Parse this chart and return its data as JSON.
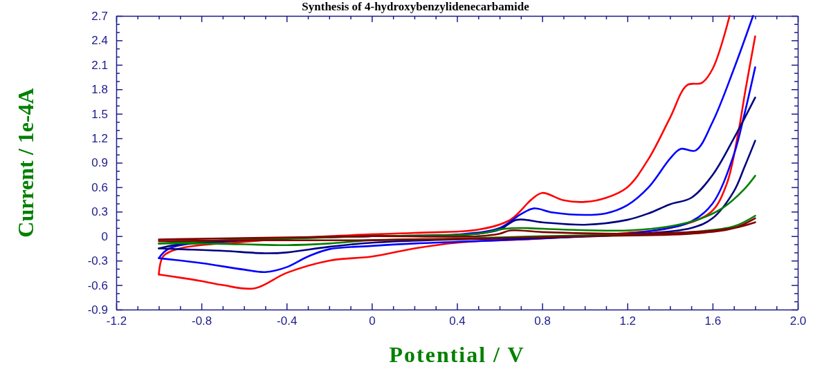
{
  "chart_data": {
    "type": "line",
    "title": "Synthesis of 4-hydroxybenzylidenecarbamide",
    "xlabel": "Potential / V",
    "ylabel": "Current / 1e-4A",
    "xlim": [
      -1.2,
      2.0
    ],
    "xticks": [
      {
        "value": -1.2,
        "label": "-1.2"
      },
      {
        "value": -1.1,
        "label": null
      },
      {
        "value": -1.0,
        "label": null
      },
      {
        "value": -0.9,
        "label": null
      },
      {
        "value": -0.8,
        "label": "-0.8"
      },
      {
        "value": -0.7,
        "label": null
      },
      {
        "value": -0.6,
        "label": null
      },
      {
        "value": -0.5,
        "label": null
      },
      {
        "value": -0.4,
        "label": "-0.4"
      },
      {
        "value": -0.3,
        "label": null
      },
      {
        "value": -0.2,
        "label": null
      },
      {
        "value": -0.1,
        "label": null
      },
      {
        "value": 0,
        "label": "0"
      },
      {
        "value": 0.1,
        "label": null
      },
      {
        "value": 0.2,
        "label": null
      },
      {
        "value": 0.3,
        "label": null
      },
      {
        "value": 0.4,
        "label": "0.4"
      },
      {
        "value": 0.5,
        "label": null
      },
      {
        "value": 0.6,
        "label": null
      },
      {
        "value": 0.7,
        "label": null
      },
      {
        "value": 0.8,
        "label": "0.8"
      },
      {
        "value": 0.9,
        "label": null
      },
      {
        "value": 1.0,
        "label": null
      },
      {
        "value": 1.1,
        "label": null
      },
      {
        "value": 1.2,
        "label": "1.2"
      },
      {
        "value": 1.3,
        "label": null
      },
      {
        "value": 1.4,
        "label": null
      },
      {
        "value": 1.5,
        "label": null
      },
      {
        "value": 1.6,
        "label": "1.6"
      },
      {
        "value": 1.7,
        "label": null
      },
      {
        "value": 1.8,
        "label": null
      },
      {
        "value": 1.9,
        "label": null
      },
      {
        "value": 2.0,
        "label": "2.0"
      }
    ],
    "ylim": [
      -0.9,
      2.7
    ],
    "yticks": [
      {
        "value": -0.9,
        "label": "-0.9"
      },
      {
        "value": -0.8,
        "label": null
      },
      {
        "value": -0.7,
        "label": null
      },
      {
        "value": -0.6,
        "label": "-0.6"
      },
      {
        "value": -0.5,
        "label": null
      },
      {
        "value": -0.4,
        "label": null
      },
      {
        "value": -0.3,
        "label": "-0.3"
      },
      {
        "value": -0.2,
        "label": null
      },
      {
        "value": -0.1,
        "label": null
      },
      {
        "value": 0,
        "label": "0"
      },
      {
        "value": 0.1,
        "label": null
      },
      {
        "value": 0.2,
        "label": null
      },
      {
        "value": 0.3,
        "label": "0.3"
      },
      {
        "value": 0.4,
        "label": null
      },
      {
        "value": 0.5,
        "label": null
      },
      {
        "value": 0.6,
        "label": "0.6"
      },
      {
        "value": 0.7,
        "label": null
      },
      {
        "value": 0.8,
        "label": null
      },
      {
        "value": 0.9,
        "label": "0.9"
      },
      {
        "value": 1.0,
        "label": null
      },
      {
        "value": 1.1,
        "label": null
      },
      {
        "value": 1.2,
        "label": "1.2"
      },
      {
        "value": 1.3,
        "label": null
      },
      {
        "value": 1.4,
        "label": null
      },
      {
        "value": 1.5,
        "label": "1.5"
      },
      {
        "value": 1.6,
        "label": null
      },
      {
        "value": 1.7,
        "label": null
      },
      {
        "value": 1.8,
        "label": "1.8"
      },
      {
        "value": 1.9,
        "label": null
      },
      {
        "value": 2.0,
        "label": null
      },
      {
        "value": 2.1,
        "label": "2.1"
      },
      {
        "value": 2.2,
        "label": null
      },
      {
        "value": 2.3,
        "label": null
      },
      {
        "value": 2.4,
        "label": "2.4"
      },
      {
        "value": 2.5,
        "label": null
      },
      {
        "value": 2.6,
        "label": null
      },
      {
        "value": 2.7,
        "label": "2.7"
      }
    ],
    "grid": false,
    "marker": "none",
    "line_style": "solid",
    "series": [
      {
        "color": "#ff0000",
        "x": [
          -1.0,
          -0.98,
          -0.9,
          -0.6,
          -0.2,
          0.2,
          0.5,
          0.65,
          0.75,
          0.8,
          0.9,
          1.0,
          1.1,
          1.2,
          1.3,
          1.4,
          1.48,
          1.55,
          1.6,
          1.68
        ],
        "values": [
          -0.47,
          -0.25,
          -0.15,
          -0.07,
          0.0,
          0.04,
          0.08,
          0.2,
          0.45,
          0.53,
          0.44,
          0.42,
          0.47,
          0.6,
          0.95,
          1.45,
          1.85,
          1.88,
          2.05,
          2.7
        ]
      },
      {
        "color": "#ff0000",
        "x": [
          1.8,
          1.753,
          1.72,
          1.665,
          1.59,
          1.4,
          1.2,
          0.8,
          0.4,
          0.2,
          0,
          -0.2,
          -0.4,
          -0.55,
          -0.7,
          -0.8,
          -1.0
        ],
        "values": [
          2.45,
          1.77,
          1.26,
          0.63,
          0.29,
          0.1,
          0.04,
          -0.03,
          -0.08,
          -0.15,
          -0.25,
          -0.3,
          -0.45,
          -0.64,
          -0.6,
          -0.55,
          -0.47
        ]
      },
      {
        "color": "#0000ff",
        "x": [
          -1.0,
          -0.95,
          -0.6,
          0,
          0.4,
          0.6,
          0.7,
          0.76,
          0.85,
          1.0,
          1.1,
          1.2,
          1.3,
          1.4,
          1.45,
          1.52,
          1.6,
          1.7,
          1.79
        ],
        "values": [
          -0.27,
          -0.15,
          -0.05,
          0.0,
          0.02,
          0.1,
          0.27,
          0.34,
          0.29,
          0.26,
          0.28,
          0.38,
          0.6,
          0.95,
          1.07,
          1.05,
          1.4,
          2.05,
          2.7
        ]
      },
      {
        "color": "#0000ff",
        "x": [
          1.8,
          1.75,
          1.7,
          1.6,
          1.5,
          1.3,
          1.0,
          0.6,
          0.4,
          0.2,
          0,
          -0.2,
          -0.3,
          -0.4,
          -0.5,
          -0.6,
          -0.8,
          -1.0
        ],
        "values": [
          2.07,
          1.5,
          1.0,
          0.4,
          0.18,
          0.06,
          0.0,
          -0.05,
          -0.07,
          -0.09,
          -0.12,
          -0.16,
          -0.25,
          -0.38,
          -0.44,
          -0.41,
          -0.33,
          -0.27
        ]
      },
      {
        "color": "#000080",
        "x": [
          -1.0,
          -0.9,
          -0.5,
          0,
          0.5,
          0.6,
          0.68,
          0.8,
          1.0,
          1.2,
          1.3,
          1.4,
          1.5,
          1.6,
          1.7,
          1.8
        ],
        "values": [
          -0.15,
          -0.1,
          -0.04,
          0.0,
          0.03,
          0.08,
          0.2,
          0.17,
          0.14,
          0.2,
          0.28,
          0.39,
          0.47,
          0.75,
          1.2,
          1.7
        ]
      },
      {
        "color": "#000080",
        "x": [
          1.8,
          1.75,
          1.7,
          1.6,
          1.5,
          1.2,
          0.8,
          0.4,
          0,
          -0.2,
          -0.4,
          -0.5,
          -0.7,
          -0.9,
          -1.0
        ],
        "values": [
          1.17,
          0.85,
          0.55,
          0.22,
          0.1,
          0.02,
          -0.02,
          -0.04,
          -0.08,
          -0.13,
          -0.2,
          -0.21,
          -0.18,
          -0.16,
          -0.15
        ]
      },
      {
        "color": "#008000",
        "x": [
          -1.0,
          -0.8,
          -0.4,
          0,
          0.5,
          0.62,
          0.7,
          0.9,
          1.2,
          1.4,
          1.55,
          1.65,
          1.75,
          1.8
        ],
        "values": [
          -0.09,
          -0.06,
          -0.03,
          0.0,
          0.03,
          0.09,
          0.1,
          0.08,
          0.07,
          0.12,
          0.22,
          0.35,
          0.58,
          0.74
        ]
      },
      {
        "color": "#008000",
        "x": [
          1.8,
          1.7,
          1.5,
          1.2,
          0.8,
          0.4,
          0,
          -0.2,
          -0.4,
          -0.6,
          -0.8,
          -1.0
        ],
        "values": [
          0.25,
          0.12,
          0.05,
          0.02,
          0.0,
          -0.03,
          -0.05,
          -0.09,
          -0.11,
          -0.1,
          -0.09,
          -0.09
        ]
      },
      {
        "color": "#800000",
        "x": [
          -1.0,
          -0.5,
          0,
          0.5,
          0.6,
          0.65,
          0.8,
          1.2,
          1.5,
          1.7,
          1.8
        ],
        "values": [
          -0.04,
          -0.02,
          0.0,
          0.0,
          0.03,
          0.07,
          0.05,
          0.03,
          0.05,
          0.1,
          0.17
        ]
      },
      {
        "color": "#800000",
        "x": [
          1.8,
          1.7,
          1.5,
          1.0,
          0.5,
          0,
          -0.5,
          -1.0
        ],
        "values": [
          0.22,
          0.1,
          0.03,
          0.0,
          -0.03,
          -0.05,
          -0.05,
          -0.06
        ]
      }
    ]
  }
}
